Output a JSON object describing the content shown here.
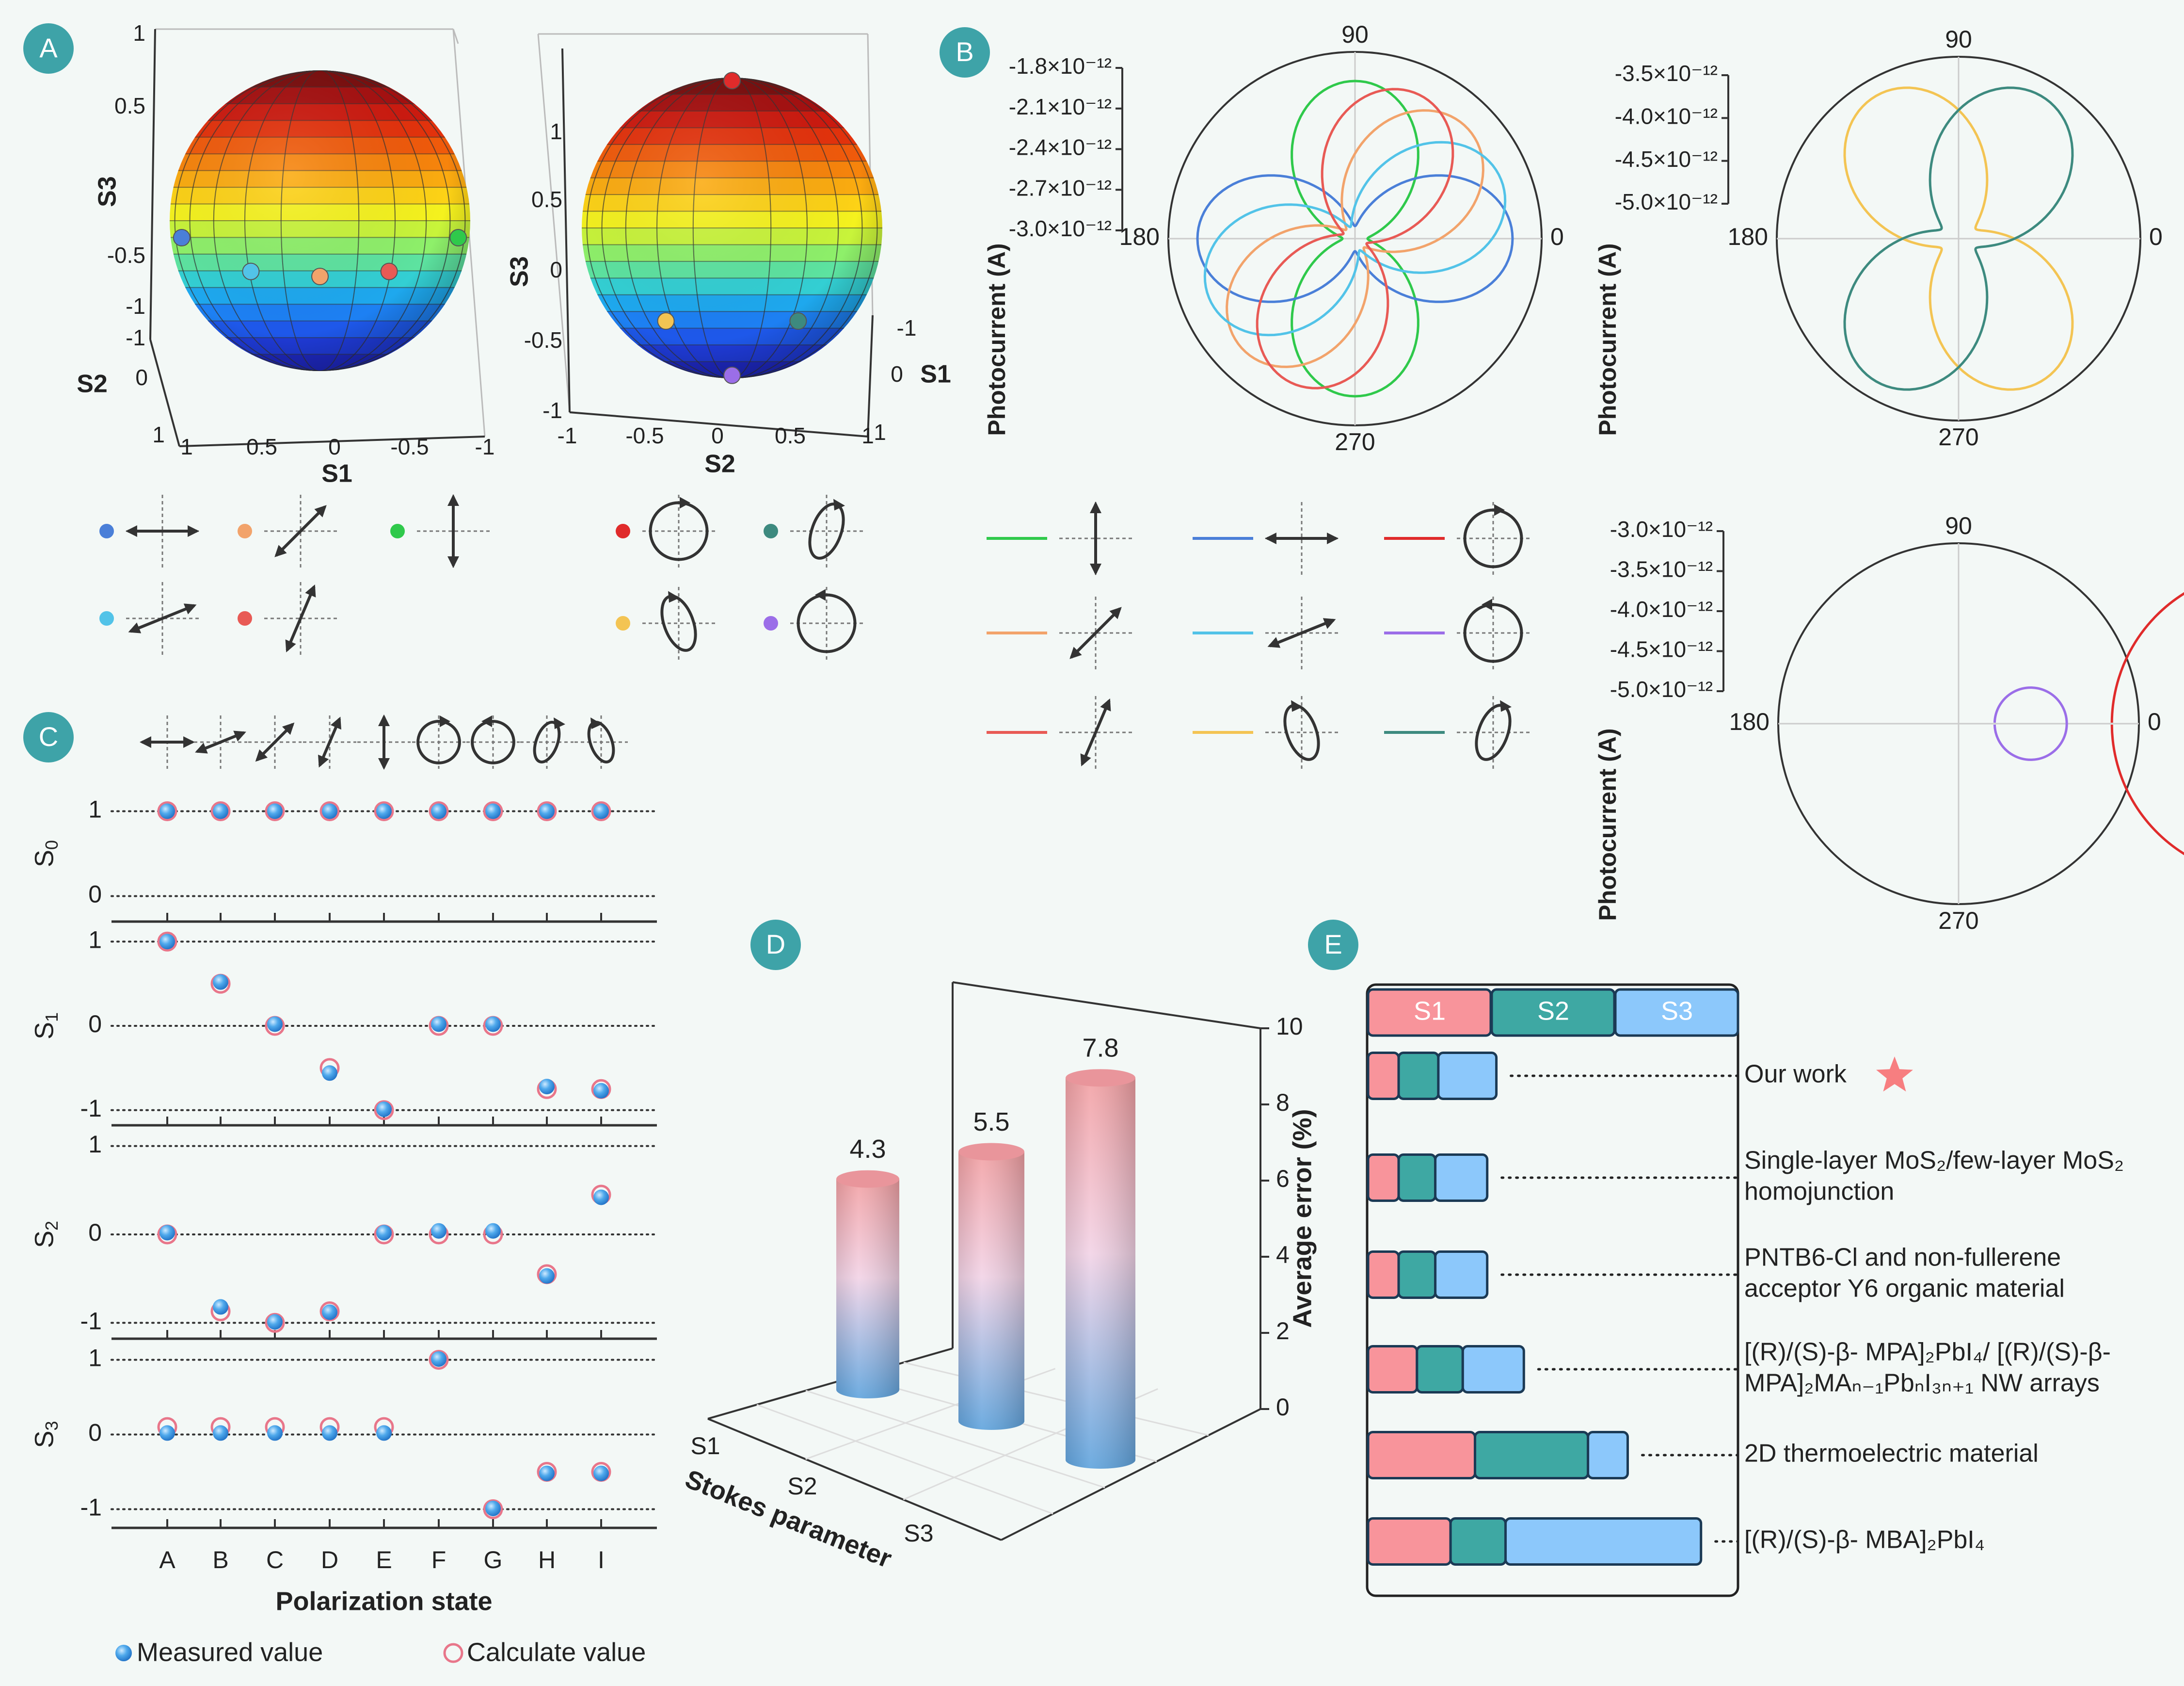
{
  "panel_labels": [
    "A",
    "B",
    "C",
    "D",
    "E"
  ],
  "chart_data": [
    {
      "id": "A",
      "type": "other",
      "subtype": "poincare-sphere-3d",
      "spheres": [
        {
          "name": "linear",
          "axes": {
            "x": "S1",
            "y": "S2",
            "z": "S3"
          },
          "x_ticks": [
            "1",
            "0.5",
            "0",
            "-0.5",
            "-1"
          ],
          "y_ticks": [
            "-1",
            "0",
            "1"
          ],
          "z_ticks": [
            "1",
            "0.5",
            "-0.5",
            "-1"
          ],
          "points": [
            {
              "state": "A",
              "s1": 1,
              "s2": 0,
              "s3": 0,
              "color": "#4a7fd8"
            },
            {
              "state": "B",
              "s1": 0.5,
              "s2": -0.87,
              "s3": 0,
              "color": "#52c3e8"
            },
            {
              "state": "C",
              "s1": 0,
              "s2": -1,
              "s3": 0,
              "color": "#f2a36b"
            },
            {
              "state": "D",
              "s1": -0.5,
              "s2": -0.87,
              "s3": 0,
              "color": "#e85a55"
            },
            {
              "state": "E",
              "s1": -1,
              "s2": 0,
              "s3": 0,
              "color": "#2fc94b"
            }
          ]
        },
        {
          "name": "circular",
          "axes": {
            "x": "S2",
            "y": "S1",
            "z": "S3"
          },
          "x_ticks": [
            "-1",
            "-0.5",
            "0",
            "0.5",
            "1"
          ],
          "y_ticks": [
            "-1",
            "0",
            "1"
          ],
          "z_ticks": [
            "1",
            "0.5",
            "0",
            "-0.5",
            "-1"
          ],
          "points": [
            {
              "state": "F",
              "s1": 0,
              "s2": 0,
              "s3": 1,
              "color": "#e02b2b"
            },
            {
              "state": "G",
              "s1": 0,
              "s2": 0,
              "s3": -1,
              "color": "#9b6ee8"
            },
            {
              "state": "H",
              "s1": -0.7,
              "s2": -0.5,
              "s3": -0.5,
              "color": "#f3c453"
            },
            {
              "state": "I",
              "s1": -0.7,
              "s2": 0.5,
              "s3": -0.5,
              "color": "#3d8a7f"
            }
          ]
        }
      ],
      "legend": [
        {
          "color": "#4a7fd8",
          "glyph": "linear-horizontal"
        },
        {
          "color": "#f2a36b",
          "glyph": "linear-45"
        },
        {
          "color": "#2fc94b",
          "glyph": "linear-vertical"
        },
        {
          "color": "#52c3e8",
          "glyph": "linear-22"
        },
        {
          "color": "#e85a55",
          "glyph": "linear-67"
        },
        {
          "color": "#e02b2b",
          "glyph": "circular-right"
        },
        {
          "color": "#3d8a7f",
          "glyph": "elliptical-right"
        },
        {
          "color": "#f3c453",
          "glyph": "elliptical-left"
        },
        {
          "color": "#9b6ee8",
          "glyph": "circular-left"
        }
      ]
    },
    {
      "id": "B",
      "type": "line",
      "subtype": "polar",
      "plots": [
        {
          "name": "linear-states",
          "ylabel": "Photocurrent (A)",
          "r_ticks": [
            "-1.8×10⁻¹²",
            "-2.1×10⁻¹²",
            "-2.4×10⁻¹²",
            "-2.7×10⁻¹²",
            "-3.0×10⁻¹²"
          ],
          "angle_ticks": [
            "90",
            "180",
            "0",
            "270"
          ],
          "series": [
            {
              "name": "vertical",
              "color": "#2fc94b",
              "phase_deg": 90
            },
            {
              "name": "horizontal",
              "color": "#4a7fd8",
              "phase_deg": 0
            },
            {
              "name": "45deg",
              "color": "#f2a36b",
              "phase_deg": 45
            },
            {
              "name": "22deg",
              "color": "#52c3e8",
              "phase_deg": 22
            },
            {
              "name": "67deg",
              "color": "#e85a55",
              "phase_deg": 67
            }
          ]
        },
        {
          "name": "elliptical-states",
          "ylabel": "Photocurrent (A)",
          "r_ticks": [
            "-3.5×10⁻¹²",
            "-4.0×10⁻¹²",
            "-4.5×10⁻¹²",
            "-5.0×10⁻¹²"
          ],
          "angle_ticks": [
            "90",
            "180",
            "0",
            "270"
          ],
          "series": [
            {
              "name": "elliptical-left",
              "color": "#f3c453",
              "phase_deg": 120
            },
            {
              "name": "elliptical-right",
              "color": "#3d8a7f",
              "phase_deg": 60
            }
          ]
        },
        {
          "name": "circular-states",
          "ylabel": "Photocurrent (A)",
          "r_ticks": [
            "-3.0×10⁻¹²",
            "-3.5×10⁻¹²",
            "-4.0×10⁻¹²",
            "-4.5×10⁻¹²",
            "-5.0×10⁻¹²"
          ],
          "angle_ticks": [
            "90",
            "180",
            "0",
            "270"
          ],
          "series": [
            {
              "name": "circular-right",
              "color": "#e02b2b",
              "radius_frac": 0.85
            },
            {
              "name": "circular-left",
              "color": "#9b6ee8",
              "radius_frac": 0.2
            }
          ]
        }
      ],
      "legend": [
        {
          "color": "#2fc94b",
          "glyph": "linear-vertical"
        },
        {
          "color": "#4a7fd8",
          "glyph": "linear-horizontal"
        },
        {
          "color": "#e02b2b",
          "glyph": "circular-right"
        },
        {
          "color": "#f2a36b",
          "glyph": "linear-45"
        },
        {
          "color": "#52c3e8",
          "glyph": "linear-22"
        },
        {
          "color": "#9b6ee8",
          "glyph": "circular-left"
        },
        {
          "color": "#e85a55",
          "glyph": "linear-67"
        },
        {
          "color": "#f3c453",
          "glyph": "elliptical-left"
        },
        {
          "color": "#3d8a7f",
          "glyph": "elliptical-right"
        }
      ]
    },
    {
      "id": "C",
      "type": "scatter",
      "xlabel": "Polarization state",
      "categories": [
        "A",
        "B",
        "C",
        "D",
        "E",
        "F",
        "G",
        "H",
        "I"
      ],
      "glyphs": [
        "linear-horizontal",
        "linear-22",
        "linear-45",
        "linear-67",
        "linear-vertical",
        "circular-right",
        "circular-left",
        "elliptical-right",
        "elliptical-left"
      ],
      "rows": [
        {
          "ylabel": "S",
          "sub": "0",
          "yticks": [
            1,
            0
          ],
          "ylim": [
            -0.3,
            1.3
          ],
          "measured": [
            1,
            1,
            1,
            1,
            1,
            1,
            1,
            1,
            1
          ],
          "calculated": [
            1,
            1,
            1,
            1,
            1,
            1,
            1,
            1,
            1
          ]
        },
        {
          "ylabel": "S",
          "sub": "1",
          "yticks": [
            1,
            0,
            -1
          ],
          "ylim": [
            -1.18,
            1.18
          ],
          "measured": [
            1,
            0.52,
            0.02,
            -0.56,
            -0.99,
            0.02,
            0.02,
            -0.72,
            -0.77
          ],
          "calculated": [
            1,
            0.5,
            0,
            -0.5,
            -1,
            0,
            0,
            -0.75,
            -0.75
          ]
        },
        {
          "ylabel": "S",
          "sub": "2",
          "yticks": [
            1,
            0,
            -1
          ],
          "ylim": [
            -1.18,
            1.18
          ],
          "measured": [
            0.02,
            -0.82,
            -0.99,
            -0.88,
            0.02,
            0.04,
            0.04,
            -0.47,
            0.42
          ],
          "calculated": [
            0,
            -0.87,
            -1,
            -0.87,
            0,
            0,
            0,
            -0.45,
            0.45
          ]
        },
        {
          "ylabel": "S",
          "sub": "3",
          "yticks": [
            1,
            0,
            -1
          ],
          "ylim": [
            -1.25,
            1.25
          ],
          "measured": [
            0.02,
            0.02,
            0.02,
            0.02,
            0.02,
            1.01,
            -0.99,
            -0.52,
            -0.52
          ],
          "calculated": [
            0.1,
            0.1,
            0.1,
            0.1,
            0.1,
            1,
            -1,
            -0.5,
            -0.5
          ]
        }
      ],
      "legend": [
        "Measured value",
        "Calculate value"
      ]
    },
    {
      "id": "D",
      "type": "bar",
      "subtype": "3d-cylinder",
      "categories": [
        "S1",
        "S2",
        "S3"
      ],
      "values": [
        4.3,
        5.5,
        7.8
      ],
      "xlabel": "Stokes parameter",
      "zlabel": "Average error (%)",
      "zticks": [
        0,
        2,
        4,
        6,
        8,
        10
      ],
      "zlim": [
        0,
        10
      ],
      "gradient": [
        "#f2a0a3",
        "#f2d3e6",
        "#5ea3dd"
      ]
    },
    {
      "id": "E",
      "type": "bar",
      "subtype": "stacked-horizontal",
      "legend": [
        {
          "name": "S1",
          "color": "#f8949b"
        },
        {
          "name": "S2",
          "color": "#3ea8a3"
        },
        {
          "name": "S3",
          "color": "#8cc8fb"
        }
      ],
      "rows": [
        {
          "label_lines": [
            "Our work"
          ],
          "values": [
            1,
            1.3,
            1.9
          ],
          "star": true
        },
        {
          "label_lines": [
            "Single-layer MoS₂/few-layer MoS₂",
            "homojunction"
          ],
          "values": [
            1,
            1.2,
            1.7
          ]
        },
        {
          "label_lines": [
            "PNTB6-Cl and non-fullerene",
            "acceptor Y6 organic material"
          ],
          "values": [
            1,
            1.2,
            1.7
          ]
        },
        {
          "label_lines": [
            "[(R)/(S)-β- MPA]₂PbI₄/ [(R)/(S)-β-",
            "MPA]₂MAₙ₋₁PbₙI₃ₙ₊₁ NW arrays"
          ],
          "values": [
            1.6,
            1.5,
            2.0
          ]
        },
        {
          "label_lines": [
            "2D thermoelectric material"
          ],
          "values": [
            3.5,
            3.7,
            1.3
          ]
        },
        {
          "label_lines": [
            "[(R)/(S)-β- MBA]₂PbI₄"
          ],
          "values": [
            2.7,
            1.8,
            6.4
          ]
        }
      ]
    }
  ]
}
